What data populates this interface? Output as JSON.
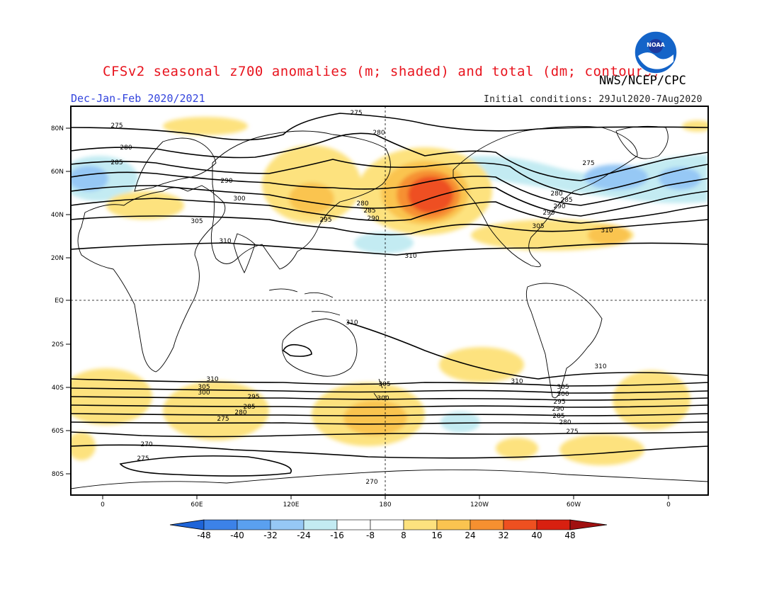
{
  "title": "CFSv2 seasonal z700 anomalies (m; shaded) and total (dm; contours)",
  "agency": "NWS/NCEP/CPC",
  "period": "Dec-Jan-Feb 2020/2021",
  "initial_conditions": "Initial conditions: 29Jul2020-7Aug2020",
  "logo_text": "NOAA",
  "lat_ticks": [
    "80N",
    "60N",
    "40N",
    "20N",
    "EQ",
    "20S",
    "40S",
    "60S",
    "80S"
  ],
  "lon_ticks": [
    "0",
    "60E",
    "120E",
    "180",
    "120W",
    "60W",
    "0"
  ],
  "colorbar": {
    "labels": [
      "-48",
      "-40",
      "-32",
      "-24",
      "-16",
      "-8",
      "8",
      "16",
      "24",
      "32",
      "40",
      "48"
    ],
    "colors": [
      "#1e64d8",
      "#3c82e8",
      "#5aa0f0",
      "#96c8f5",
      "#c3ebf2",
      "#ffffff",
      "#fde27e",
      "#fac450",
      "#f69030",
      "#ee5020",
      "#d82010",
      "#a01010"
    ]
  },
  "contour_labels": [
    "275",
    "280",
    "285",
    "290",
    "295",
    "300",
    "305",
    "310",
    "310",
    "305",
    "300",
    "295",
    "290",
    "285",
    "280",
    "275",
    "270"
  ]
}
